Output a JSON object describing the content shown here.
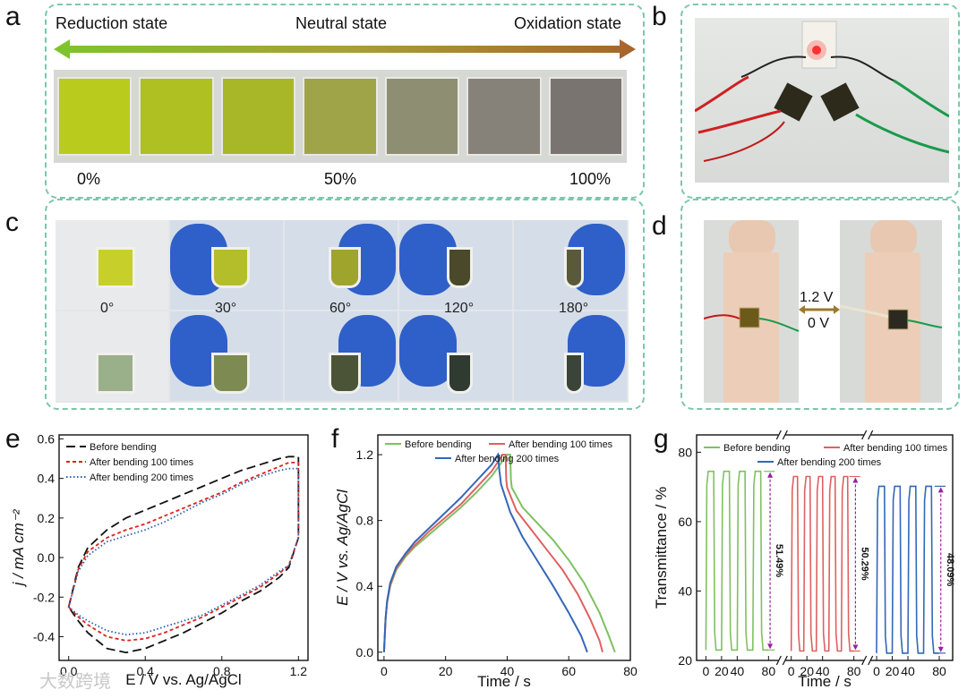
{
  "panels": {
    "a": {
      "letter": "a",
      "left_label": "Reduction state",
      "mid_label": "Neutral state",
      "right_label": "Oxidation state",
      "pct_0": "0%",
      "pct_50": "50%",
      "pct_100": "100%",
      "swatch_colors": [
        "#b9cb1c",
        "#aec022",
        "#a8b728",
        "#9fa448",
        "#8e8f72",
        "#86827a",
        "#7a7470"
      ]
    },
    "b": {
      "letter": "b"
    },
    "c": {
      "letter": "c",
      "angles": [
        "0°",
        "30°",
        "60°",
        "120°",
        "180°"
      ]
    },
    "d": {
      "letter": "d",
      "voltage_top": "1.2  V",
      "voltage_bottom": "0  V"
    },
    "e": {
      "letter": "e"
    },
    "f": {
      "letter": "f"
    },
    "g": {
      "letter": "g"
    }
  },
  "watermark": "大数跨境",
  "chart_data": [
    {
      "panel": "e",
      "type": "line",
      "title": "",
      "xlabel": "E / V vs. Ag/AgCl",
      "ylabel": "j / mA cm⁻²",
      "xlim": [
        -0.05,
        1.25
      ],
      "ylim": [
        -0.52,
        0.62
      ],
      "xticks": [
        "0.0",
        "0.4",
        "0.8",
        "1.2"
      ],
      "xtick_values": [
        0.0,
        0.4,
        0.8,
        1.2
      ],
      "yticks": [
        "-0.4",
        "-0.2",
        "0.0",
        "0.2",
        "0.4",
        "0.6"
      ],
      "ytick_values": [
        -0.4,
        -0.2,
        0.0,
        0.2,
        0.4,
        0.6
      ],
      "series": [
        {
          "name": "Before bending",
          "color": "#111111",
          "dash": "10,5",
          "x": [
            0.0,
            0.05,
            0.1,
            0.2,
            0.3,
            0.4,
            0.5,
            0.6,
            0.7,
            0.8,
            0.9,
            1.0,
            1.1,
            1.15,
            1.2,
            1.2,
            1.15,
            1.1,
            1.0,
            0.9,
            0.8,
            0.7,
            0.6,
            0.5,
            0.4,
            0.3,
            0.2,
            0.1,
            0.05,
            0.0
          ],
          "y": [
            -0.25,
            -0.05,
            0.05,
            0.14,
            0.2,
            0.24,
            0.28,
            0.32,
            0.36,
            0.4,
            0.44,
            0.47,
            0.5,
            0.51,
            0.51,
            0.1,
            -0.05,
            -0.1,
            -0.17,
            -0.22,
            -0.28,
            -0.33,
            -0.38,
            -0.42,
            -0.46,
            -0.48,
            -0.46,
            -0.38,
            -0.32,
            -0.25
          ]
        },
        {
          "name": "After bending 100 times",
          "color": "#e0201a",
          "dash": "4,3",
          "x": [
            0.0,
            0.05,
            0.1,
            0.2,
            0.3,
            0.4,
            0.5,
            0.6,
            0.7,
            0.8,
            0.9,
            1.0,
            1.1,
            1.15,
            1.2,
            1.2,
            1.15,
            1.1,
            1.0,
            0.9,
            0.8,
            0.7,
            0.6,
            0.5,
            0.4,
            0.3,
            0.2,
            0.1,
            0.05,
            0.0
          ],
          "y": [
            -0.25,
            -0.06,
            0.03,
            0.1,
            0.14,
            0.17,
            0.21,
            0.25,
            0.29,
            0.33,
            0.38,
            0.42,
            0.46,
            0.48,
            0.48,
            0.1,
            -0.04,
            -0.08,
            -0.15,
            -0.2,
            -0.25,
            -0.3,
            -0.34,
            -0.38,
            -0.41,
            -0.42,
            -0.4,
            -0.34,
            -0.3,
            -0.25
          ]
        },
        {
          "name": "After bending 200 times",
          "color": "#2a5db0",
          "dash": "1.5,2.5",
          "x": [
            0.0,
            0.05,
            0.1,
            0.2,
            0.3,
            0.4,
            0.5,
            0.6,
            0.7,
            0.8,
            0.9,
            1.0,
            1.1,
            1.15,
            1.2,
            1.2,
            1.15,
            1.1,
            1.0,
            0.9,
            0.8,
            0.7,
            0.6,
            0.5,
            0.4,
            0.3,
            0.2,
            0.1,
            0.05,
            0.0
          ],
          "y": [
            -0.25,
            -0.07,
            0.01,
            0.08,
            0.11,
            0.14,
            0.18,
            0.23,
            0.28,
            0.32,
            0.37,
            0.41,
            0.44,
            0.45,
            0.45,
            0.1,
            -0.04,
            -0.07,
            -0.14,
            -0.19,
            -0.24,
            -0.29,
            -0.32,
            -0.35,
            -0.38,
            -0.39,
            -0.37,
            -0.32,
            -0.29,
            -0.25
          ]
        }
      ]
    },
    {
      "panel": "f",
      "type": "line",
      "title": "",
      "xlabel": "Time / s",
      "ylabel": "E / V vs. Ag/AgCl",
      "xlim": [
        -2,
        80
      ],
      "ylim": [
        -0.05,
        1.32
      ],
      "xticks": [
        "0",
        "20",
        "40",
        "60",
        "80"
      ],
      "xtick_values": [
        0,
        20,
        40,
        60,
        80
      ],
      "yticks": [
        "0.0",
        "0.4",
        "0.8",
        "1.2"
      ],
      "ytick_values": [
        0.0,
        0.4,
        0.8,
        1.2
      ],
      "series": [
        {
          "name": "Before bending",
          "color": "#7fc063",
          "x": [
            0,
            0.5,
            1,
            2,
            4,
            7,
            10,
            15,
            20,
            25,
            30,
            35,
            40,
            41,
            41.2,
            41.5,
            45,
            50,
            55,
            60,
            65,
            70,
            73,
            75
          ],
          "y": [
            0,
            0.2,
            0.3,
            0.4,
            0.5,
            0.58,
            0.64,
            0.72,
            0.8,
            0.88,
            0.97,
            1.07,
            1.2,
            1.2,
            1.05,
            1.0,
            0.88,
            0.78,
            0.68,
            0.56,
            0.42,
            0.24,
            0.1,
            0.0
          ]
        },
        {
          "name": "After bending 100 times",
          "color": "#e06060",
          "x": [
            0,
            0.5,
            1,
            2,
            4,
            7,
            10,
            15,
            20,
            25,
            30,
            35,
            38.5,
            39.5,
            39.7,
            40,
            43,
            48,
            53,
            58,
            63,
            67,
            70,
            71
          ],
          "y": [
            0,
            0.2,
            0.3,
            0.41,
            0.51,
            0.59,
            0.65,
            0.74,
            0.82,
            0.9,
            1.0,
            1.1,
            1.2,
            1.2,
            1.05,
            1.0,
            0.86,
            0.74,
            0.62,
            0.5,
            0.35,
            0.2,
            0.07,
            0.0
          ]
        },
        {
          "name": "After bending 200 times",
          "color": "#3467b8",
          "x": [
            0,
            0.5,
            1,
            2,
            4,
            7,
            10,
            15,
            20,
            25,
            30,
            35,
            37,
            37.5,
            38,
            41,
            45,
            50,
            55,
            60,
            64,
            66
          ],
          "y": [
            0,
            0.2,
            0.31,
            0.42,
            0.52,
            0.6,
            0.67,
            0.76,
            0.85,
            0.94,
            1.04,
            1.14,
            1.2,
            1.1,
            1.02,
            0.85,
            0.7,
            0.55,
            0.4,
            0.24,
            0.1,
            0.0
          ]
        }
      ]
    },
    {
      "panel": "g",
      "type": "line",
      "title": "",
      "xlabel": "Time / s",
      "ylabel": "Transmittance / %",
      "ylim": [
        20,
        85
      ],
      "yticks": [
        "20",
        "40",
        "60",
        "80"
      ],
      "ytick_values": [
        20,
        40,
        60,
        80
      ],
      "segment_xticks": [
        "0",
        "20",
        "40",
        "80"
      ],
      "segment_xtick_values": [
        0,
        20,
        40,
        80
      ],
      "segment_xlim": [
        -5,
        88
      ],
      "series": [
        {
          "name": "Before bending",
          "color": "#7fc063",
          "high": 74.5,
          "low": 23.0,
          "cycles": 4,
          "delta_label": "51.49%"
        },
        {
          "name": "After bending 100 times",
          "color": "#e06060",
          "high": 73.0,
          "low": 22.7,
          "cycles": 5,
          "delta_label": "50.29%"
        },
        {
          "name": "After bending 200 times",
          "color": "#3467b8",
          "high": 70.2,
          "low": 22.1,
          "cycles": 4,
          "delta_label": "48.09%"
        }
      ]
    }
  ]
}
